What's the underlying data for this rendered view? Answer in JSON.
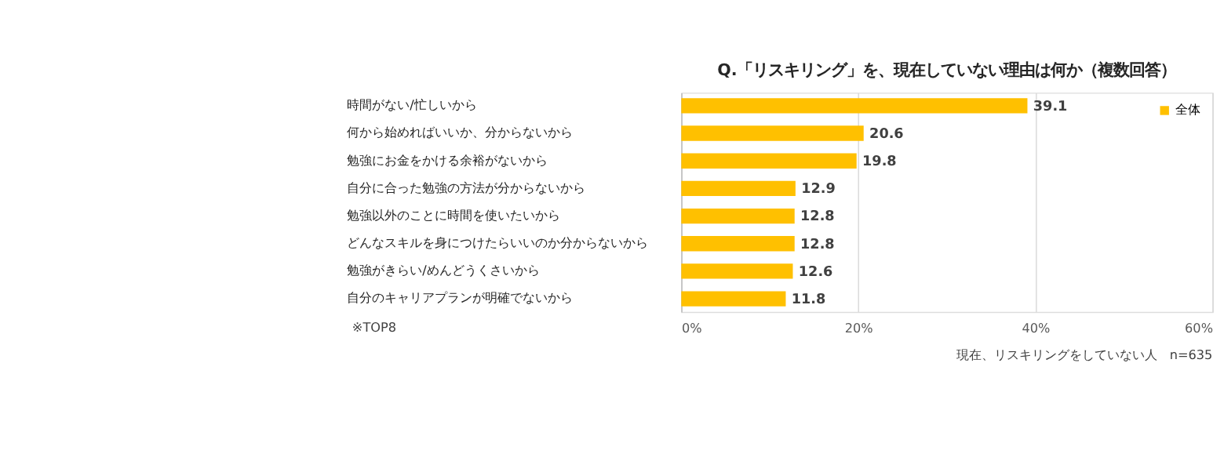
{
  "chart_data": {
    "type": "bar",
    "orientation": "horizontal",
    "title": "Q.「リスキリング」を、現在していない理由は何か（複数回答）",
    "categories": [
      "時間がない/忙しいから",
      "何から始めればいいか、分からないから",
      "勉強にお金をかける余裕がないから",
      "自分に合った勉強の方法が分からないから",
      "勉強以外のことに時間を使いたいから",
      "どんなスキルを身につけたらいいのか分からないから",
      "勉強がきらい/めんどうくさいから",
      "自分のキャリアプランが明確でないから"
    ],
    "series": [
      {
        "name": "全体",
        "color": "#ffc000",
        "values": [
          39.1,
          20.6,
          19.8,
          12.9,
          12.8,
          12.8,
          12.6,
          11.8
        ]
      }
    ],
    "xlim": [
      0,
      60
    ],
    "xticks": [
      {
        "value": 0,
        "label": "0%"
      },
      {
        "value": 20,
        "label": "20%"
      },
      {
        "value": 40,
        "label": "40%"
      },
      {
        "value": 60,
        "label": "60%"
      }
    ],
    "grid": "x",
    "legend": "top right",
    "data_labels": true,
    "annotations": [
      "※TOP8",
      "現在、リスキリングをしていない人　n=635"
    ]
  }
}
